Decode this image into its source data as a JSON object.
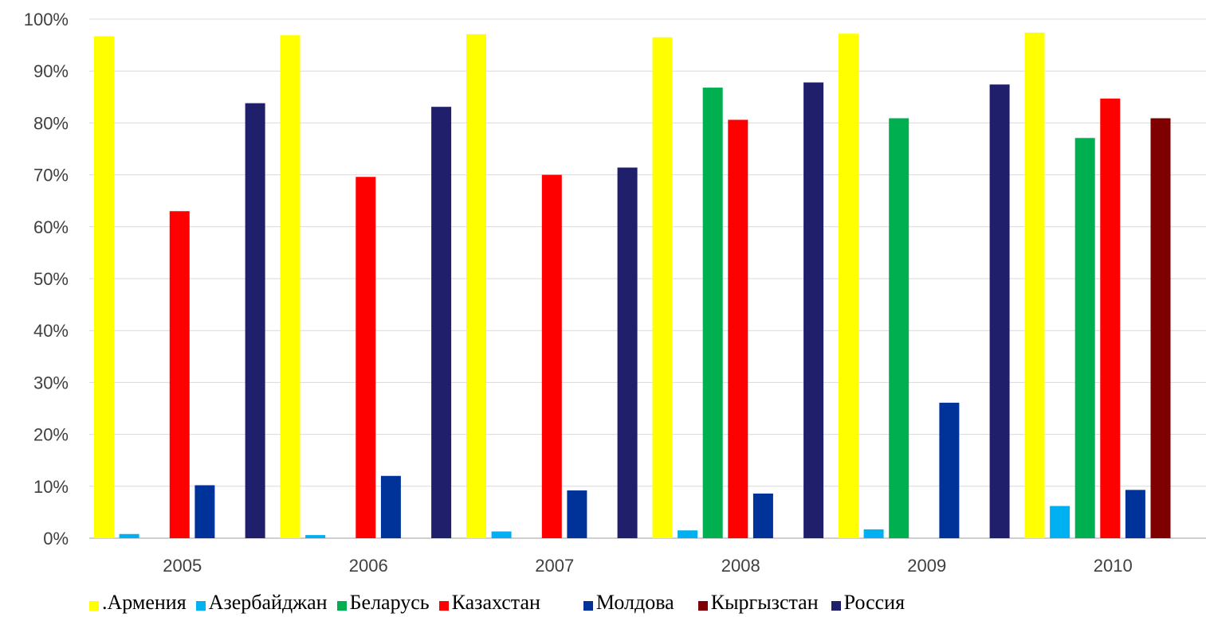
{
  "chart_data": {
    "type": "bar",
    "categories": [
      "2005",
      "2006",
      "2007",
      "2008",
      "2009",
      "2010"
    ],
    "ylim": [
      0,
      100
    ],
    "y_tick_labels": [
      "0%",
      "10%",
      "20%",
      "30%",
      "40%",
      "50%",
      "60%",
      "70%",
      "80%",
      "90%",
      "100%"
    ],
    "grid": true,
    "legend_position": "bottom",
    "series": [
      {
        "name": "Армения",
        "color": "#FFFF00",
        "values": [
          96.7,
          96.9,
          97.1,
          96.5,
          97.2,
          97.4
        ]
      },
      {
        "name": "Азербайджан",
        "color": "#00B0F0",
        "values": [
          0.8,
          0.6,
          1.3,
          1.5,
          1.7,
          6.2
        ]
      },
      {
        "name": "Беларусь",
        "color": "#00B050",
        "values": [
          0,
          0,
          0,
          86.8,
          80.9,
          77.1
        ]
      },
      {
        "name": "Казахстан",
        "color": "#FF0000",
        "values": [
          63.0,
          69.6,
          70.0,
          80.6,
          0,
          84.7
        ]
      },
      {
        "name": "Молдова",
        "color": "#003399",
        "values": [
          10.2,
          12.0,
          9.2,
          8.6,
          26.1,
          9.3
        ]
      },
      {
        "name": "Кыргызстан",
        "color": "#7F0000",
        "values": [
          0,
          0,
          0,
          0,
          0,
          80.9
        ]
      },
      {
        "name": "Россия",
        "color": "#1F1F6B",
        "values": [
          83.8,
          83.1,
          71.4,
          87.8,
          87.4,
          0
        ]
      }
    ]
  },
  "legend": {
    "items": [
      {
        "label": ".Армения",
        "color": "#FFFF00"
      },
      {
        "label": "Азербайджан",
        "color": "#00B0F0"
      },
      {
        "label": "Беларусь",
        "color": "#00B050"
      },
      {
        "label": "Казахстан",
        "color": "#FF0000"
      },
      {
        "label": "Молдова",
        "color": "#003399"
      },
      {
        "label": "Кыргызстан",
        "color": "#7F0000"
      },
      {
        "label": "Россия",
        "color": "#1F1F6B"
      }
    ]
  }
}
